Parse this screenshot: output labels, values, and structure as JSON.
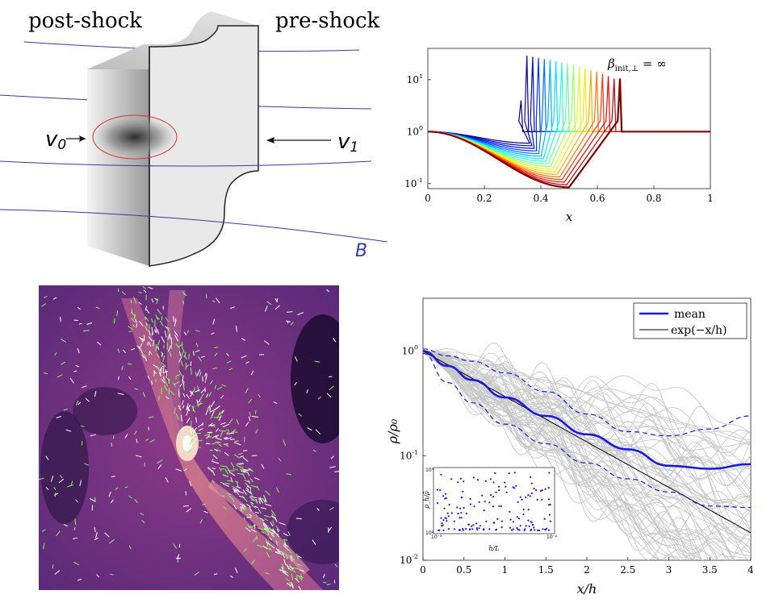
{
  "schematic": {
    "left_label": "post-shock",
    "right_label": "pre-shock",
    "v0": "v",
    "v0_sub": "0",
    "v1": "v",
    "v1_sub": "1",
    "field": "B",
    "line_color": "#3a3aa0",
    "ellipse_color": "#e03030"
  },
  "chart_data": [
    {
      "type": "line",
      "panel": "top-right",
      "annotation_main": "β",
      "annotation_sub": "init,⊥",
      "annotation_rest": " = ∞",
      "xlabel": "x",
      "ylabel": "",
      "xlim": [
        0,
        1
      ],
      "ylim": [
        0.08,
        40
      ],
      "yscale": "log",
      "x_ticks": [
        "0",
        "0.2",
        "0.4",
        "0.6",
        "0.8",
        "1"
      ],
      "y_ticks": [
        {
          "base": "10",
          "exp": "-1",
          "v": 0.1
        },
        {
          "base": "10",
          "exp": "0",
          "v": 1
        },
        {
          "base": "10",
          "exp": "1",
          "v": 10
        }
      ],
      "grid": false,
      "colormap": "jet",
      "n_series": 18,
      "shock_position_range": [
        0.33,
        0.68
      ],
      "peak_value_range": [
        4,
        30
      ],
      "trough_value_range": [
        0.6,
        0.085
      ],
      "trough_position": [
        0.36,
        0.5
      ],
      "pre_shock_value": 1
    },
    {
      "type": "line",
      "panel": "bottom-right",
      "xlabel": "x/h",
      "ylabel": "ρ/ρ₀",
      "xlim": [
        0,
        4
      ],
      "ylim": [
        0.01,
        3.2
      ],
      "yscale": "log",
      "x_ticks": [
        "0",
        "0.5",
        "1",
        "1.5",
        "2",
        "2.5",
        "3",
        "3.5",
        "4"
      ],
      "y_ticks": [
        {
          "base": "10",
          "exp": "-2",
          "v": 0.01
        },
        {
          "base": "10",
          "exp": "-1",
          "v": 0.1
        },
        {
          "base": "10",
          "exp": "0",
          "v": 1
        }
      ],
      "legend": [
        {
          "name": "mean",
          "color": "#1a1adc"
        },
        {
          "name": "exp(−x/h)",
          "color": "#000000"
        }
      ],
      "legend_position": "top-right",
      "mean": {
        "x": [
          0,
          0.3,
          0.6,
          1,
          1.5,
          2,
          2.5,
          3,
          3.5,
          4
        ],
        "y": [
          1.0,
          0.72,
          0.53,
          0.36,
          0.24,
          0.16,
          0.115,
          0.08,
          0.075,
          0.083
        ]
      },
      "upper": {
        "x": [
          0,
          0.3,
          0.6,
          1,
          1.5,
          2,
          2.5,
          3,
          3.5,
          4
        ],
        "y": [
          1.05,
          0.9,
          0.8,
          0.62,
          0.41,
          0.25,
          0.17,
          0.155,
          0.18,
          0.24
        ]
      },
      "lower": {
        "x": [
          0,
          0.3,
          0.6,
          1,
          1.5,
          2,
          2.5,
          3,
          3.5,
          4
        ],
        "y": [
          0.95,
          0.5,
          0.32,
          0.2,
          0.13,
          0.085,
          0.06,
          0.045,
          0.033,
          0.032
        ]
      },
      "sample_color": "#c8c8c8",
      "inset": {
        "xlabel": "h/L",
        "ylabel": "ρ_h/ρ̄",
        "x_ticks": [
          "10⁻³",
          "10⁻²"
        ],
        "y_ticks": [
          "10²",
          "10³"
        ],
        "point_color": "#1a1adc"
      }
    }
  ],
  "simulation": {
    "vector_color_1": "#7CFC5A",
    "vector_color_2": "#ffffff",
    "colormap": "magma"
  }
}
